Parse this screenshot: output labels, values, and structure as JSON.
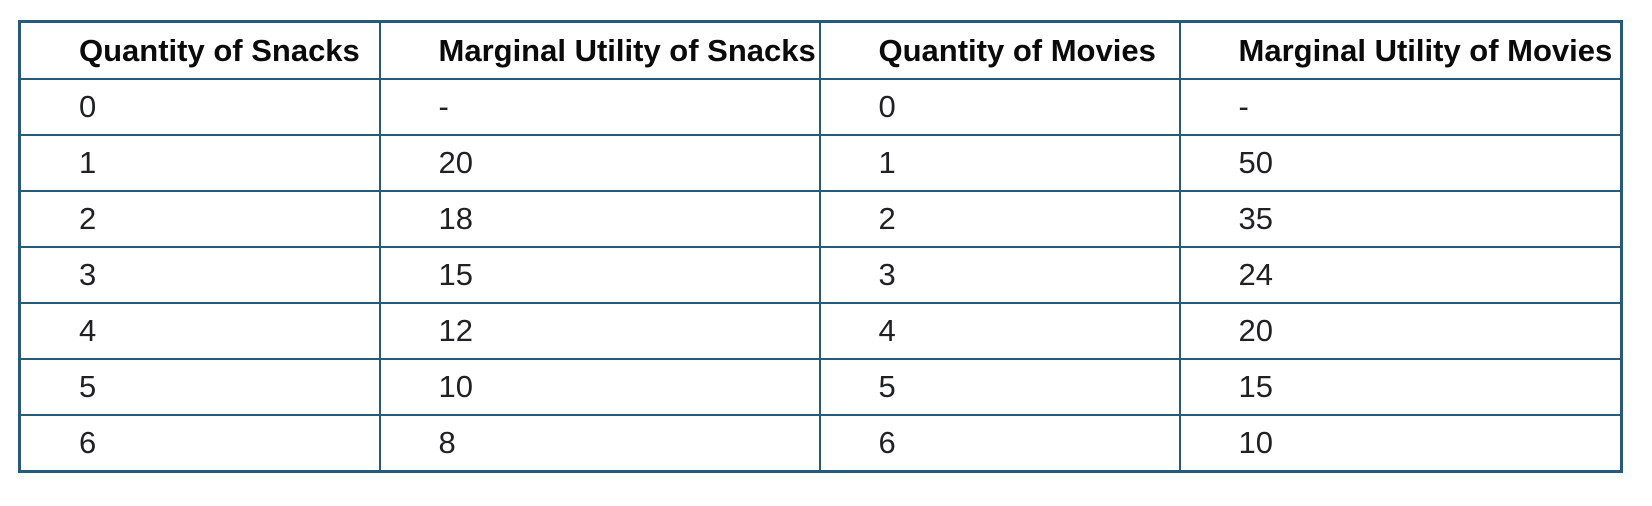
{
  "colors": {
    "border": "#275a78",
    "header_text": "#0a0a0a",
    "cell_text": "#202124",
    "background": "#ffffff"
  },
  "table": {
    "headers": [
      "Quantity of Snacks",
      "Marginal Utility of Snacks",
      "Quantity of Movies",
      "Marginal Utility of Movies"
    ],
    "rows": [
      [
        "0",
        "-",
        "0",
        "-"
      ],
      [
        "1",
        "20",
        "1",
        "50"
      ],
      [
        "2",
        "18",
        "2",
        "35"
      ],
      [
        "3",
        "15",
        "3",
        "24"
      ],
      [
        "4",
        "12",
        "4",
        "20"
      ],
      [
        "5",
        "10",
        "5",
        "15"
      ],
      [
        "6",
        "8",
        "6",
        "10"
      ]
    ]
  },
  "chart_data": {
    "type": "table",
    "title": "",
    "columns": [
      "Quantity of Snacks",
      "Marginal Utility of Snacks",
      "Quantity of Movies",
      "Marginal Utility of Movies"
    ],
    "rows": [
      [
        "0",
        "-",
        "0",
        "-"
      ],
      [
        "1",
        "20",
        "1",
        "50"
      ],
      [
        "2",
        "18",
        "2",
        "35"
      ],
      [
        "3",
        "15",
        "3",
        "24"
      ],
      [
        "4",
        "12",
        "4",
        "20"
      ],
      [
        "5",
        "10",
        "5",
        "15"
      ],
      [
        "6",
        "8",
        "6",
        "10"
      ]
    ]
  }
}
